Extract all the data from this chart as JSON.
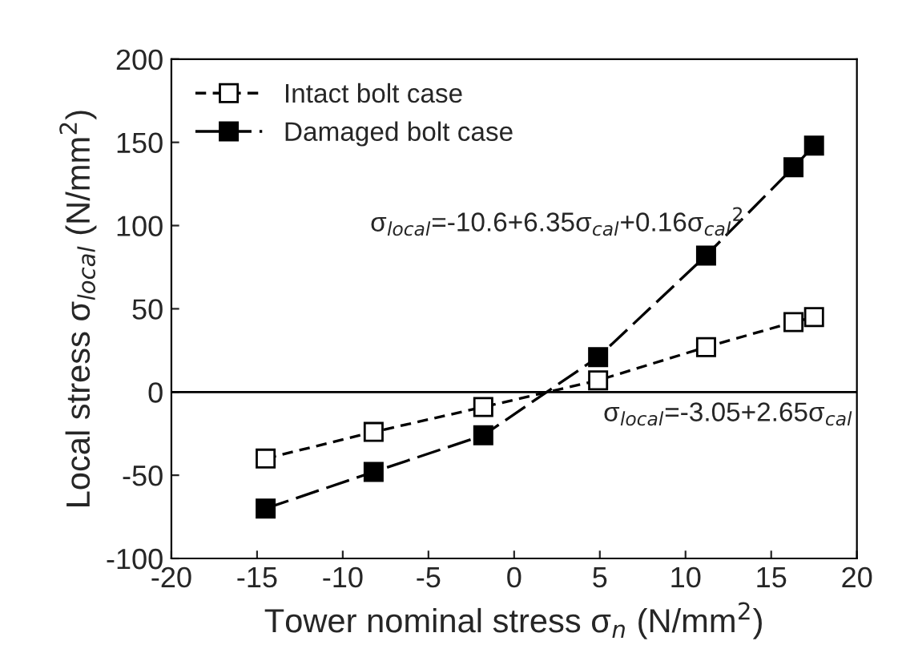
{
  "chart_data": {
    "type": "line",
    "xlabel": "Tower nominal stress σ$_{n}$ (N/mm$^{2}$)",
    "ylabel": "Local stress σ$_{local}$ (N/mm$^{2}$)",
    "series": [
      {
        "name": "Intact bolt case",
        "color": "#000000",
        "line_style": "dashed",
        "x": [
          -14.5,
          -8.2,
          -1.8,
          4.9,
          11.2,
          16.3,
          17.5
        ],
        "values": [
          -40,
          -24,
          -9,
          7,
          27,
          42,
          45
        ]
      },
      {
        "name": "Damaged bolt case",
        "color": "#000000",
        "line_style": "dashed",
        "x": [
          -14.5,
          -8.2,
          -1.8,
          4.9,
          11.2,
          16.3,
          17.5
        ],
        "values": [
          -70,
          -48,
          -26,
          21,
          82,
          135,
          148
        ]
      }
    ],
    "marker": "square",
    "annotations": [
      "σ$_{local}$=-10.6+6.35σ$_{cal}$+0.16σ$_{cal}$$^{2}$",
      "σ$_{local}$=-3.05+2.65σ$_{cal}$"
    ],
    "ref_lines": [
      {
        "axis": "y",
        "value": 0,
        "color": "#000000",
        "line_style": "solid"
      }
    ],
    "xlim": [
      -20,
      20
    ],
    "xticks": [
      -20,
      -15,
      -10,
      -5,
      0,
      5,
      10,
      15,
      20
    ],
    "ylim": [
      -100,
      200
    ],
    "yticks": [
      -100,
      -50,
      0,
      50,
      100,
      150,
      200
    ],
    "grid": false,
    "legend": "top left"
  }
}
